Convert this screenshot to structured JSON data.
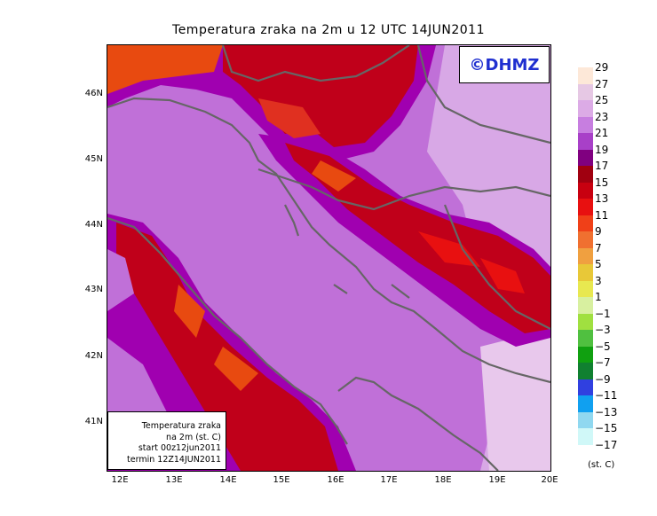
{
  "title": "Temperatura zraka na 2m u 12 UTC 14JUN2011",
  "watermark": "©DHMZ",
  "info": {
    "line1": "Temperatura zraka",
    "line2": "na 2m (st. C)",
    "line3": "start 00z12jun2011",
    "line4": "termin 12Z14JUN2011"
  },
  "latitude_labels": [
    "46N",
    "45N",
    "44N",
    "43N",
    "42N",
    "41N"
  ],
  "longitude_labels": [
    "12E",
    "13E",
    "14E",
    "15E",
    "16E",
    "17E",
    "18E",
    "19E",
    "20E"
  ],
  "legend": {
    "units": "(st. C)",
    "labels": [
      "29",
      "27",
      "25",
      "23",
      "21",
      "19",
      "17",
      "15",
      "13",
      "11",
      "9",
      "7",
      "5",
      "3",
      "1",
      "−1",
      "−3",
      "−5",
      "−7",
      "−9",
      "−11",
      "−13",
      "−15",
      "−17"
    ],
    "colors": [
      "#fde8d8",
      "#e6c8e4",
      "#dcabe6",
      "#c77ee0",
      "#a840c8",
      "#800080",
      "#a00010",
      "#c80010",
      "#e81010",
      "#f04018",
      "#f07030",
      "#f0a040",
      "#e8c838",
      "#e8e850",
      "#d8f0a0",
      "#a0e040",
      "#50c040",
      "#10a010",
      "#108030",
      "#3040e0",
      "#10a0f0",
      "#90d8f0",
      "#d0f8f8"
    ],
    "swatch_colors_top_to_bottom": [
      "#fde8d8",
      "#e6c8e4",
      "#dcabe6",
      "#c77ee0",
      "#a840c8",
      "#800080",
      "#a00010",
      "#c80010",
      "#e81010",
      "#f04018",
      "#f07030",
      "#f0a040",
      "#e8c838",
      "#e8e850",
      "#d8f0a0",
      "#a0e040",
      "#50c040",
      "#10a010",
      "#108030",
      "#3040e0",
      "#10a0f0",
      "#90d8f0",
      "#d0f8f8"
    ]
  }
}
